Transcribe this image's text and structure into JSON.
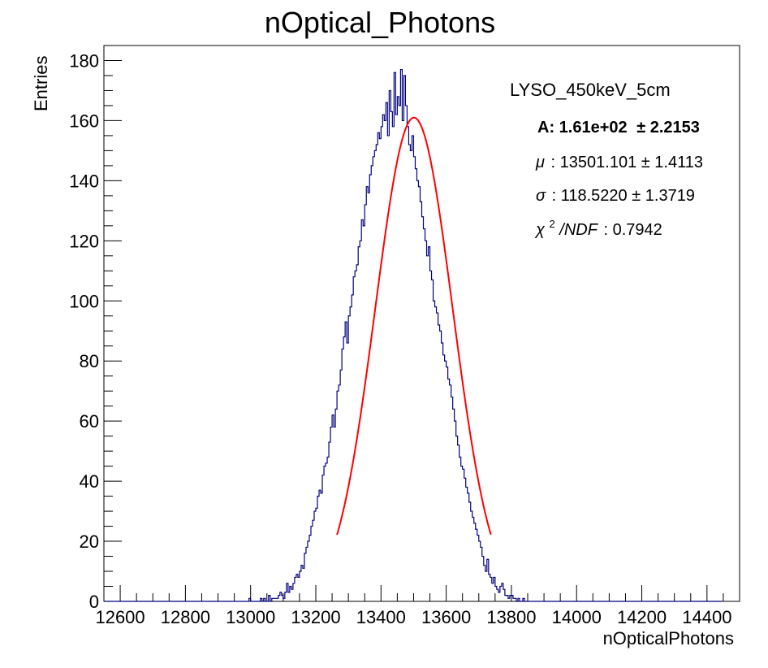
{
  "chart_data": {
    "type": "histogram",
    "title": "nOptical_Photons",
    "xlabel": "nOpticalPhotons",
    "ylabel": "Entries",
    "xlim": [
      12550,
      14500
    ],
    "ylim": [
      0,
      185
    ],
    "x_ticks": [
      12600,
      12800,
      13000,
      13200,
      13400,
      13600,
      13800,
      14000,
      14200,
      14400
    ],
    "y_ticks": [
      0,
      20,
      40,
      60,
      80,
      100,
      120,
      140,
      160,
      180
    ],
    "bin_width": 5,
    "hist_color": "#000080",
    "fit_color": "#ff0000",
    "fit": {
      "function": "gaussian",
      "A": 161,
      "mu": 13501.101,
      "sigma": 118.522,
      "range": [
        13265,
        13737
      ]
    },
    "histogram": {
      "x_start": 12550,
      "values": [
        0,
        0,
        0,
        0,
        0,
        0,
        0,
        0,
        0,
        0,
        0,
        0,
        0,
        0,
        0,
        0,
        0,
        0,
        0,
        0,
        0,
        0,
        0,
        0,
        0,
        0,
        0,
        0,
        0,
        0,
        0,
        0,
        0,
        0,
        0,
        0,
        0,
        0,
        0,
        0,
        0,
        0,
        0,
        0,
        0,
        0,
        0,
        0,
        0,
        0,
        0,
        0,
        0,
        0,
        0,
        0,
        0,
        0,
        0,
        0,
        0,
        0,
        0,
        0,
        0,
        0,
        0,
        0,
        0,
        0,
        0,
        0,
        0,
        0,
        0,
        0,
        0,
        0,
        0,
        0,
        0,
        0,
        0,
        0,
        0,
        0,
        0,
        0,
        0,
        1,
        0,
        0,
        0,
        0,
        0,
        0,
        1,
        0,
        1,
        0,
        0,
        2,
        0,
        1,
        1,
        1,
        1,
        2,
        3,
        2,
        1,
        3,
        6,
        3,
        5,
        4,
        6,
        8,
        9,
        8,
        10,
        12,
        11,
        16,
        18,
        20,
        22,
        25,
        27,
        30,
        31,
        35,
        37,
        36,
        42,
        45,
        46,
        48,
        53,
        58,
        62,
        58,
        64,
        70,
        72,
        77,
        84,
        88,
        93,
        86,
        95,
        98,
        102,
        108,
        110,
        112,
        118,
        120,
        127,
        125,
        132,
        138,
        136,
        142,
        145,
        148,
        150,
        152,
        156,
        154,
        158,
        162,
        160,
        166,
        155,
        170,
        163,
        158,
        176,
        162,
        168,
        165,
        177,
        160,
        175,
        165,
        158,
        152,
        150,
        155,
        148,
        144,
        140,
        138,
        133,
        128,
        124,
        120,
        115,
        118,
        110,
        107,
        100,
        98,
        96,
        92,
        90,
        86,
        82,
        80,
        78,
        74,
        72,
        68,
        64,
        60,
        55,
        52,
        48,
        45,
        44,
        41,
        38,
        36,
        33,
        30,
        28,
        26,
        24,
        22,
        20,
        18,
        15,
        12,
        10,
        14,
        9,
        8,
        6,
        8,
        5,
        4,
        3,
        5,
        6,
        4,
        2,
        2,
        1,
        2,
        2,
        1,
        1,
        0,
        1,
        0,
        0,
        1,
        0,
        0,
        0,
        0,
        0,
        0,
        0,
        0,
        0,
        0,
        0,
        0,
        0,
        0,
        0,
        0,
        0,
        0,
        0,
        0,
        0,
        0,
        0,
        0,
        0,
        0,
        0,
        0,
        0,
        0,
        0,
        0,
        0,
        0,
        0,
        0,
        0,
        0,
        0,
        0,
        0,
        0,
        0,
        0,
        0,
        0,
        0,
        0,
        0,
        0,
        0,
        0,
        0,
        0,
        0,
        0,
        0,
        0,
        0,
        0,
        0,
        0,
        0,
        0,
        0,
        0,
        0,
        0,
        0,
        0,
        0,
        0,
        0,
        0,
        0,
        0,
        0,
        0,
        0,
        0,
        0,
        0,
        0,
        0,
        0,
        0,
        0,
        0,
        0,
        0,
        0,
        0,
        0,
        0,
        0,
        0,
        0,
        0,
        0,
        0,
        0,
        0,
        0,
        0,
        0,
        0,
        0,
        0,
        0,
        0,
        0,
        0,
        0,
        0,
        0,
        0,
        0,
        0,
        0,
        0,
        0
      ]
    }
  },
  "stats": {
    "name": "LYSO_450keV_5cm",
    "A_label": "A: 1.61e+02",
    "A_err": "± 2.2153",
    "mu_label": "μ",
    "mu_value": ": 13501.101 ± 1.4113",
    "sigma_label": "σ",
    "sigma_value": ": 118.5220 ± 1.3719",
    "chi2_label": "χ",
    "chi2_sup": "2",
    "chi2_ndf": "/NDF",
    "chi2_value": ": 0.7942"
  }
}
